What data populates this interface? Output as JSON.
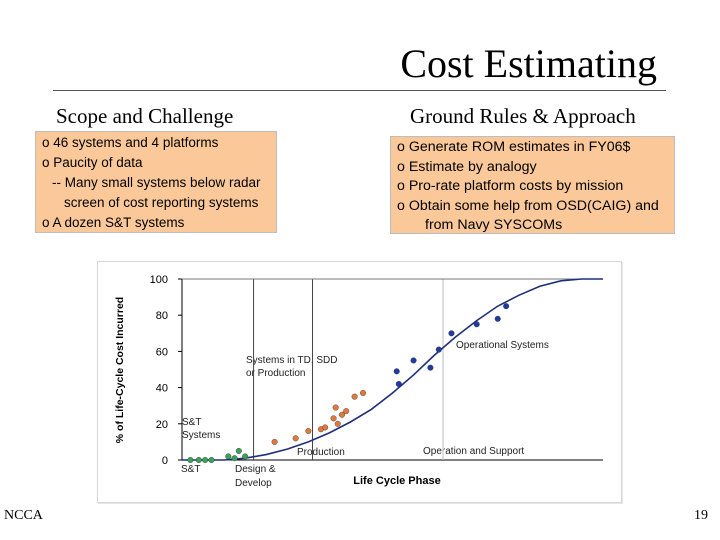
{
  "slide": {
    "title": "Cost Estimating",
    "left_heading": "Scope and Challenge",
    "right_heading": "Ground Rules & Approach",
    "left_bullets": [
      "o 46 systems and 4 platforms",
      "o Paucity of data",
      "-- Many small systems below radar",
      "screen of cost reporting systems",
      "o A dozen S&T systems"
    ],
    "right_bullets": [
      "o Generate ROM estimates in FY06$",
      "o Estimate by analogy",
      "o Pro-rate platform costs by mission",
      "o Obtain some help from OSD(CAIG) and",
      "from Navy SYSCOMs"
    ],
    "footer_left": "NCCA",
    "page_number": "19"
  },
  "colors": {
    "box_fill": "#fbc899",
    "curve": "#1f2f7a",
    "st_points": "#3aa05a",
    "design_points": "#e07a3c",
    "operational_points": "#1f3aa0"
  },
  "chart_data": {
    "type": "scatter",
    "title": "",
    "xlabel": "Life Cycle Phase",
    "ylabel": "% of Life-Cycle Cost Incurred",
    "ylim": [
      0,
      100
    ],
    "yticks": [
      0,
      20,
      40,
      60,
      80,
      100
    ],
    "grid": false,
    "phase_boundaries_x": [
      0.17,
      0.31,
      0.62
    ],
    "phase_labels_bottom": [
      "S&T",
      "Design & Develop",
      "Production",
      "Operation and Support"
    ],
    "annotations": [
      "S&T Systems",
      "Systems in TD, SDD or Production",
      "Operational Systems"
    ],
    "curve": {
      "x": [
        0.0,
        0.05,
        0.1,
        0.15,
        0.2,
        0.25,
        0.3,
        0.35,
        0.4,
        0.45,
        0.5,
        0.55,
        0.6,
        0.65,
        0.7,
        0.75,
        0.8,
        0.85,
        0.9,
        0.95,
        1.0
      ],
      "y": [
        0,
        0,
        0,
        1,
        3,
        6,
        10,
        15,
        21,
        28,
        37,
        47,
        58,
        68,
        77,
        85,
        91,
        96,
        99,
        100,
        100
      ]
    },
    "series": [
      {
        "name": "S&T Systems",
        "x": [
          0.02,
          0.04,
          0.055,
          0.07,
          0.11,
          0.125,
          0.135,
          0.15
        ],
        "y": [
          0,
          0,
          0,
          0,
          2,
          1,
          5,
          2
        ]
      },
      {
        "name": "Systems in TD, SDD or Production",
        "x": [
          0.22,
          0.27,
          0.3,
          0.33,
          0.34,
          0.36,
          0.365,
          0.37,
          0.38,
          0.39,
          0.41,
          0.43
        ],
        "y": [
          10,
          12,
          16,
          17,
          18,
          23,
          29,
          20,
          25,
          27,
          35,
          37
        ]
      },
      {
        "name": "Operational Systems",
        "x": [
          0.51,
          0.515,
          0.55,
          0.59,
          0.61,
          0.64,
          0.7,
          0.75,
          0.77
        ],
        "y": [
          49,
          42,
          55,
          51,
          61,
          70,
          75,
          78,
          85
        ]
      }
    ]
  }
}
